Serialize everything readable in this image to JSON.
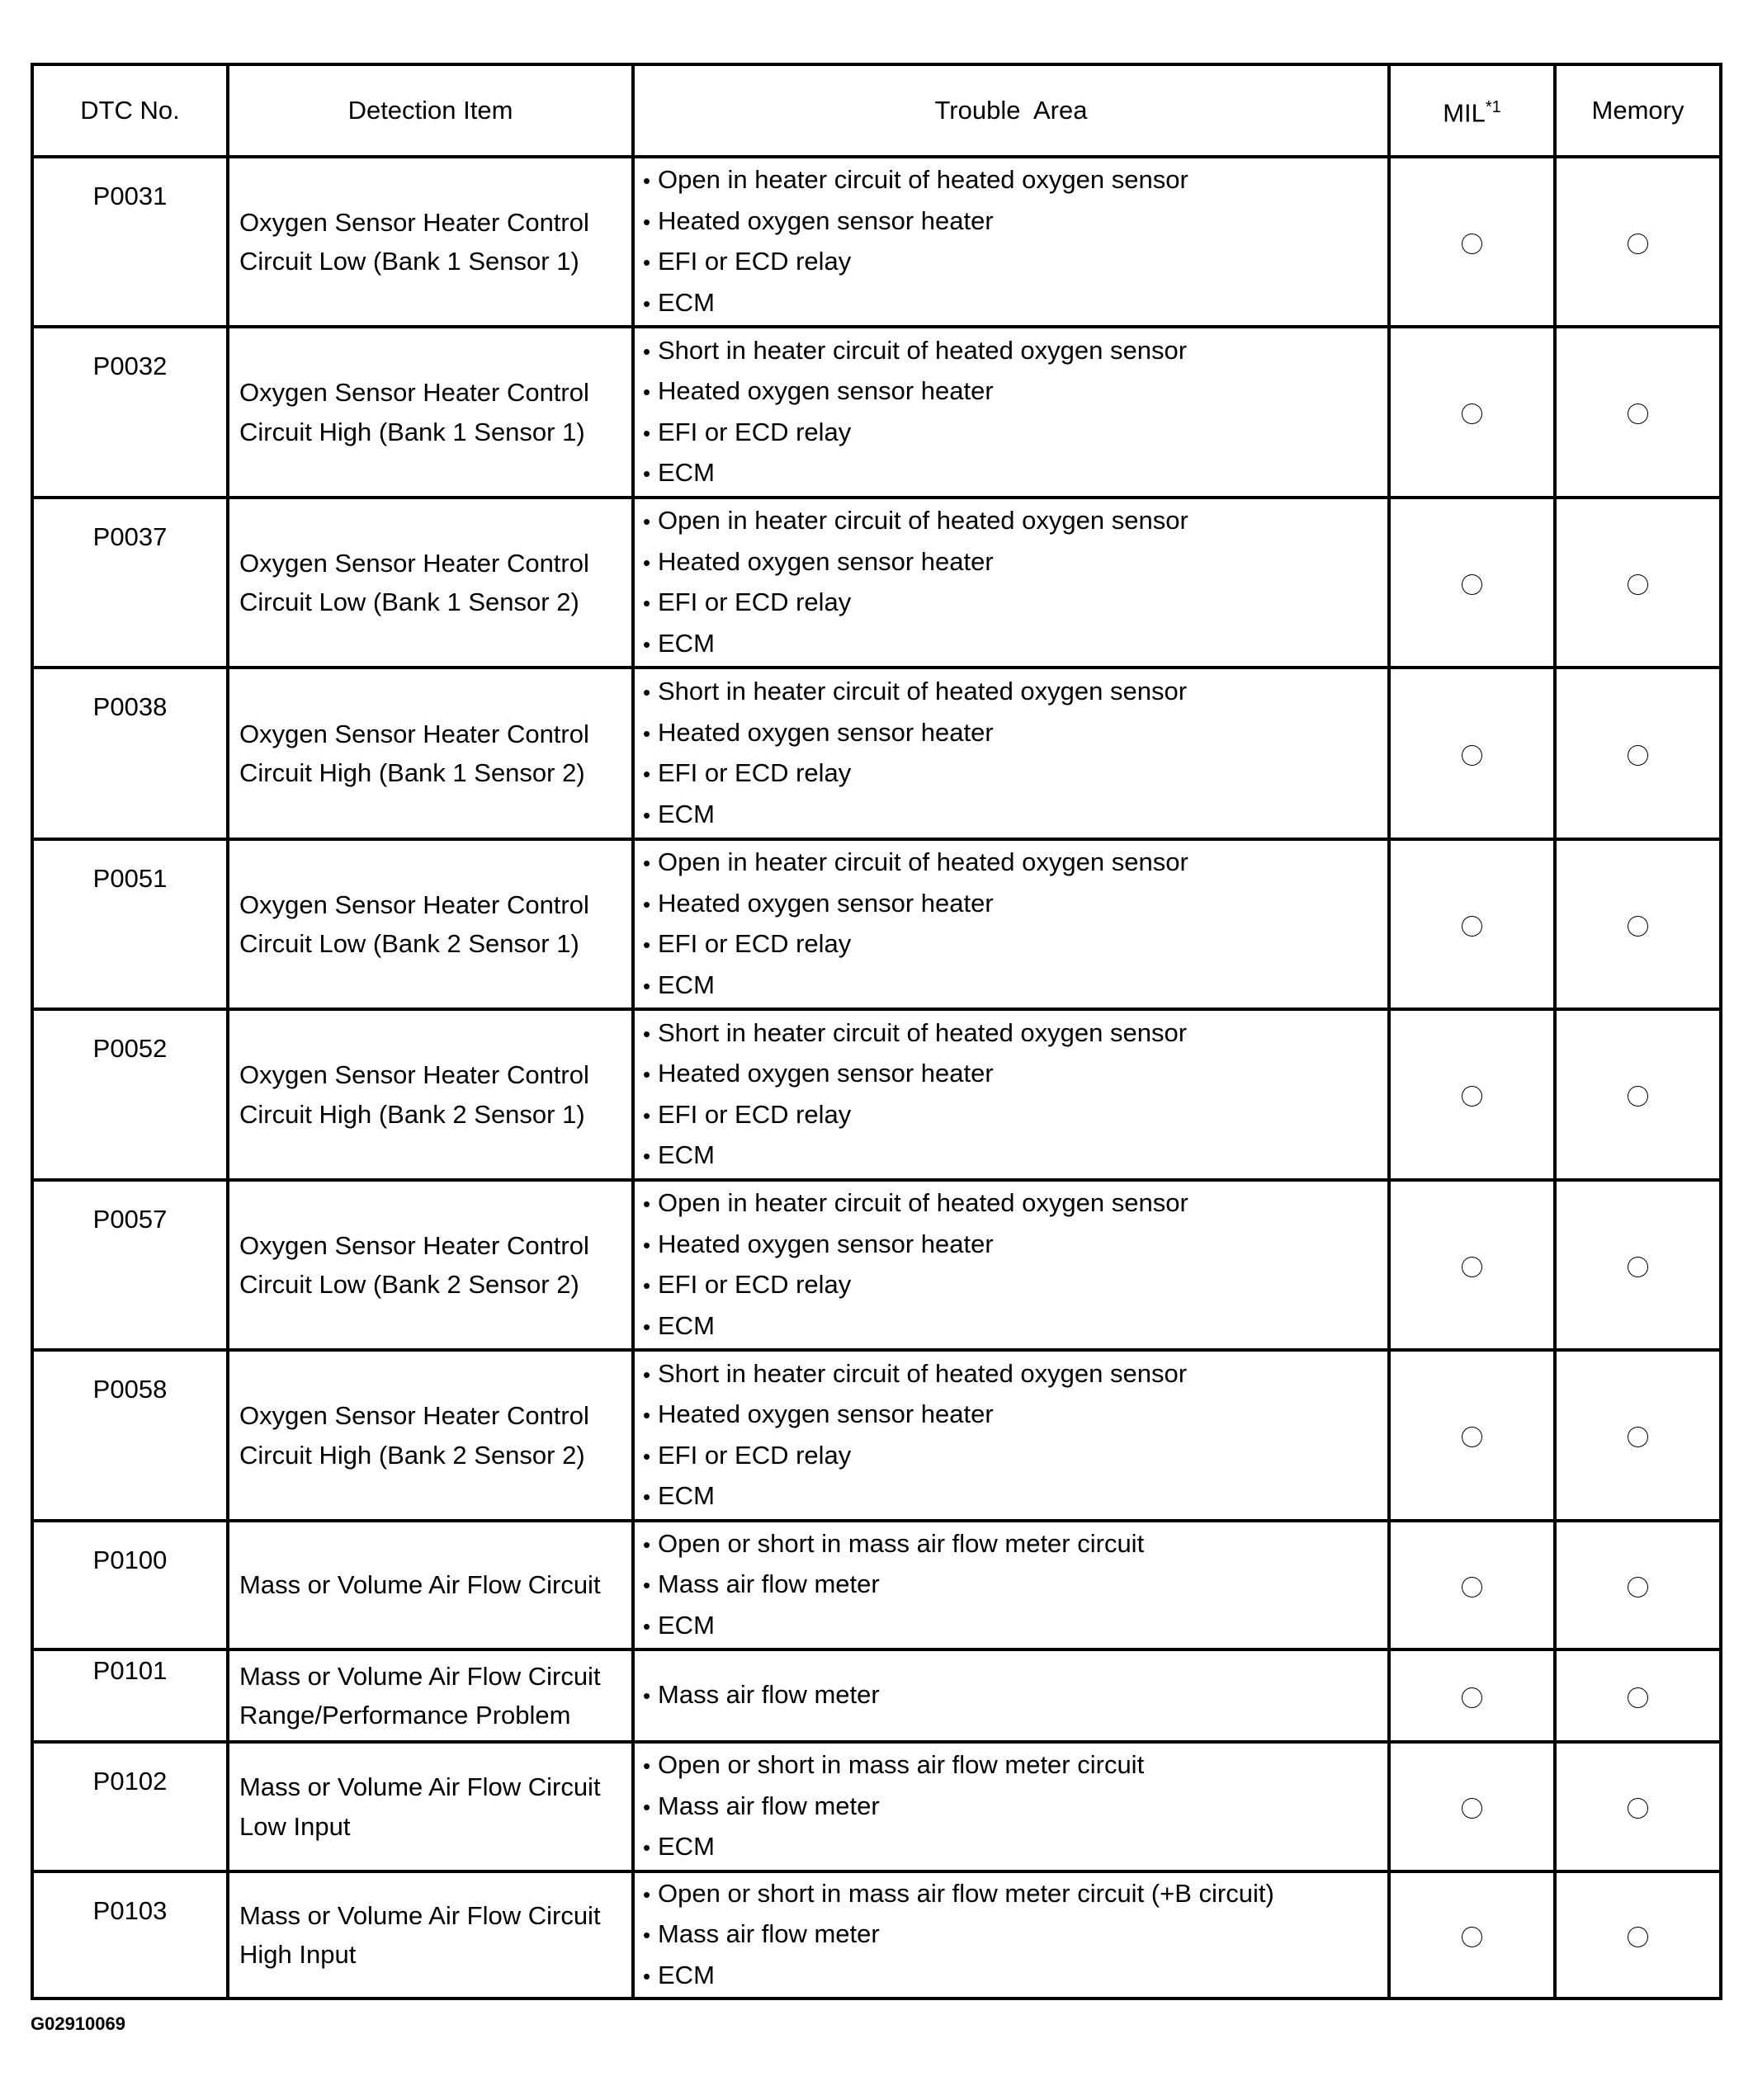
{
  "headers": {
    "dtc": "DTC No.",
    "item": "Detection Item",
    "area": "Trouble  Area",
    "mil": "MIL",
    "mil_note": "*1",
    "memory": "Memory"
  },
  "rows": [
    {
      "dtc": "P0031",
      "item": [
        "Oxygen Sensor Heater Control",
        "Circuit Low (Bank 1 Sensor 1)"
      ],
      "area": [
        "Open in heater circuit of heated oxygen sensor",
        "Heated oxygen sensor heater",
        "EFI or ECD relay",
        "ECM"
      ],
      "mil": true,
      "memory": true
    },
    {
      "dtc": "P0032",
      "item": [
        "Oxygen Sensor Heater Control",
        "Circuit High (Bank 1 Sensor 1)"
      ],
      "area": [
        "Short in heater circuit of heated oxygen sensor",
        "Heated oxygen sensor heater",
        "EFI or ECD relay",
        "ECM"
      ],
      "mil": true,
      "memory": true
    },
    {
      "dtc": "P0037",
      "item": [
        "Oxygen Sensor Heater Control",
        "Circuit Low (Bank 1 Sensor 2)"
      ],
      "area": [
        "Open in heater circuit of heated oxygen sensor",
        "Heated oxygen sensor heater",
        "EFI or ECD relay",
        "ECM"
      ],
      "mil": true,
      "memory": true
    },
    {
      "dtc": "P0038",
      "item": [
        "Oxygen Sensor Heater Control",
        "Circuit High (Bank 1 Sensor 2)"
      ],
      "area": [
        "Short in heater circuit of heated oxygen sensor",
        "Heated oxygen sensor heater",
        "EFI or ECD relay",
        "ECM"
      ],
      "mil": true,
      "memory": true
    },
    {
      "dtc": "P0051",
      "item": [
        "Oxygen Sensor Heater Control",
        "Circuit Low (Bank 2 Sensor 1)"
      ],
      "area": [
        "Open in heater circuit of heated oxygen sensor",
        "Heated oxygen sensor heater",
        "EFI or ECD relay",
        "ECM"
      ],
      "mil": true,
      "memory": true
    },
    {
      "dtc": "P0052",
      "item": [
        "Oxygen Sensor Heater Control",
        "Circuit High (Bank 2 Sensor 1)"
      ],
      "area": [
        "Short in heater circuit of heated oxygen sensor",
        "Heated oxygen sensor heater",
        "EFI or ECD relay",
        "ECM"
      ],
      "mil": true,
      "memory": true
    },
    {
      "dtc": "P0057",
      "item": [
        "Oxygen Sensor Heater Control",
        "Circuit Low (Bank 2 Sensor 2)"
      ],
      "area": [
        "Open in heater circuit of heated oxygen sensor",
        "Heated oxygen sensor heater",
        "EFI or ECD relay",
        "ECM"
      ],
      "mil": true,
      "memory": true
    },
    {
      "dtc": "P0058",
      "item": [
        "Oxygen Sensor Heater Control",
        "Circuit High (Bank 2 Sensor 2)"
      ],
      "area": [
        "Short in heater circuit of heated oxygen sensor",
        "Heated oxygen sensor heater",
        "EFI or ECD relay",
        "ECM"
      ],
      "mil": true,
      "memory": true
    },
    {
      "dtc": "P0100",
      "item": [
        "Mass or Volume Air Flow Circuit"
      ],
      "area": [
        "Open or short in mass air flow meter circuit",
        "Mass air flow meter",
        "ECM"
      ],
      "mil": true,
      "memory": true
    },
    {
      "dtc": "P0101",
      "item": [
        "Mass or Volume Air Flow Circuit",
        "Range/Performance Problem"
      ],
      "area": [
        "Mass air flow meter"
      ],
      "mil": true,
      "memory": true
    },
    {
      "dtc": "P0102",
      "item": [
        "Mass or Volume Air Flow Circuit",
        "Low Input"
      ],
      "area": [
        "Open or short in mass air flow meter circuit",
        "Mass air flow meter",
        "ECM"
      ],
      "mil": true,
      "memory": true
    },
    {
      "dtc": "P0103",
      "item": [
        "Mass or Volume Air Flow Circuit",
        "High Input"
      ],
      "area": [
        "Open or short in mass air flow meter circuit (+B circuit)",
        "Mass air flow meter",
        "ECM"
      ],
      "mil": true,
      "memory": true
    }
  ],
  "footer": {
    "figure_id": "G02910069"
  }
}
